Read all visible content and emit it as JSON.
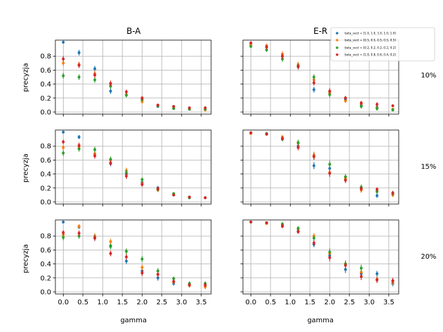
{
  "chart_data": {
    "type": "scatter",
    "column_titles": [
      "B-A",
      "E-R"
    ],
    "row_labels": [
      "10%",
      "15%",
      "20%"
    ],
    "ylabel": "precyzja",
    "xlabel": "gamma",
    "xlim": [
      -0.2,
      3.75
    ],
    "ylim": [
      -0.03,
      1.03
    ],
    "xticks": [
      0.0,
      0.5,
      1.0,
      1.5,
      2.0,
      2.5,
      3.0,
      3.5
    ],
    "xtick_labels": [
      "0.0",
      "0.5",
      "1.0",
      "1.5",
      "2.0",
      "2.5",
      "3.0",
      "3.5"
    ],
    "yticks": [
      0.0,
      0.2,
      0.4,
      0.6,
      0.8
    ],
    "ytick_labels": [
      "0.0",
      "0.2",
      "0.4",
      "0.6",
      "0.8"
    ],
    "grid": true,
    "legend_location": "upper right of top-right panel",
    "x": [
      0.0,
      0.4,
      0.8,
      1.2,
      1.6,
      2.0,
      2.4,
      2.8,
      3.2,
      3.6
    ],
    "series_colors": [
      "#1f77b4",
      "#ff7f0e",
      "#2ca02c",
      "#d62728"
    ],
    "series_names": [
      "beta_vect = [1.0, 1.0, 1.0, 1.0, 1.0]",
      "beta_vect = [0.5, 0.5, 0.5, 0.5, 0.5]",
      "beta_vect = [0.2, 0.2, 0.2, 0.2, 0.2]",
      "beta_vect = [1.0, 0.8, 0.6, 0.4, 0.2]"
    ],
    "panels": [
      {
        "row": 0,
        "col": 0,
        "series": [
          {
            "values": [
              1.0,
              0.85,
              0.62,
              0.3,
              0.25,
              0.18,
              0.08,
              0.05,
              0.04,
              0.04
            ],
            "errors": [
              0.02,
              0.04,
              0.04,
              0.04,
              0.03,
              0.03,
              0.02,
              0.02,
              0.02,
              0.02
            ]
          },
          {
            "values": [
              0.7,
              0.68,
              0.55,
              0.38,
              0.25,
              0.15,
              0.09,
              0.06,
              0.04,
              0.03
            ],
            "errors": [
              0.04,
              0.04,
              0.04,
              0.04,
              0.03,
              0.03,
              0.02,
              0.02,
              0.02,
              0.02
            ]
          },
          {
            "values": [
              0.52,
              0.5,
              0.46,
              0.37,
              0.24,
              0.18,
              0.09,
              0.05,
              0.04,
              0.04
            ],
            "errors": [
              0.04,
              0.04,
              0.04,
              0.04,
              0.03,
              0.03,
              0.02,
              0.02,
              0.02,
              0.02
            ]
          },
          {
            "values": [
              0.76,
              0.67,
              0.53,
              0.41,
              0.29,
              0.2,
              0.1,
              0.08,
              0.06,
              0.06
            ],
            "errors": [
              0.04,
              0.04,
              0.04,
              0.04,
              0.03,
              0.03,
              0.02,
              0.02,
              0.02,
              0.02
            ]
          }
        ]
      },
      {
        "row": 0,
        "col": 1,
        "series": [
          {
            "values": [
              0.98,
              0.94,
              0.8,
              0.65,
              0.32,
              0.28,
              0.18,
              0.1,
              0.07,
              0.04
            ],
            "errors": [
              0.02,
              0.03,
              0.04,
              0.04,
              0.04,
              0.04,
              0.03,
              0.03,
              0.03,
              0.02
            ]
          },
          {
            "values": [
              0.96,
              0.95,
              0.83,
              0.68,
              0.46,
              0.27,
              0.16,
              0.12,
              0.06,
              0.04
            ],
            "errors": [
              0.02,
              0.03,
              0.04,
              0.04,
              0.04,
              0.04,
              0.03,
              0.03,
              0.03,
              0.02
            ]
          },
          {
            "values": [
              0.94,
              0.89,
              0.76,
              0.66,
              0.5,
              0.25,
              0.2,
              0.08,
              0.05,
              0.03
            ],
            "errors": [
              0.02,
              0.03,
              0.04,
              0.04,
              0.04,
              0.04,
              0.03,
              0.03,
              0.03,
              0.02
            ]
          },
          {
            "values": [
              0.99,
              0.93,
              0.8,
              0.65,
              0.42,
              0.3,
              0.2,
              0.13,
              0.11,
              0.09
            ],
            "errors": [
              0.02,
              0.03,
              0.04,
              0.04,
              0.04,
              0.04,
              0.03,
              0.03,
              0.03,
              0.02
            ]
          }
        ]
      },
      {
        "row": 1,
        "col": 0,
        "series": [
          {
            "values": [
              1.0,
              0.93,
              0.69,
              0.55,
              0.4,
              0.28,
              0.2,
              0.1,
              0.06,
              0.06
            ],
            "errors": [
              0.02,
              0.03,
              0.04,
              0.04,
              0.04,
              0.03,
              0.03,
              0.02,
              0.02,
              0.02
            ]
          },
          {
            "values": [
              0.78,
              0.79,
              0.69,
              0.6,
              0.45,
              0.26,
              0.17,
              0.11,
              0.07,
              0.06
            ],
            "errors": [
              0.04,
              0.04,
              0.04,
              0.04,
              0.04,
              0.03,
              0.03,
              0.02,
              0.02,
              0.02
            ]
          },
          {
            "values": [
              0.7,
              0.76,
              0.75,
              0.61,
              0.42,
              0.32,
              0.18,
              0.12,
              0.06,
              0.06
            ],
            "errors": [
              0.04,
              0.04,
              0.04,
              0.04,
              0.04,
              0.03,
              0.03,
              0.02,
              0.02,
              0.02
            ]
          },
          {
            "values": [
              0.86,
              0.81,
              0.66,
              0.56,
              0.37,
              0.25,
              0.19,
              0.1,
              0.07,
              0.06
            ],
            "errors": [
              0.03,
              0.04,
              0.04,
              0.04,
              0.04,
              0.03,
              0.03,
              0.02,
              0.02,
              0.02
            ]
          }
        ]
      },
      {
        "row": 1,
        "col": 1,
        "series": [
          {
            "values": [
              0.99,
              0.97,
              0.9,
              0.8,
              0.52,
              0.48,
              0.33,
              0.19,
              0.09,
              0.11
            ],
            "errors": [
              0.02,
              0.02,
              0.03,
              0.04,
              0.05,
              0.05,
              0.04,
              0.04,
              0.03,
              0.03
            ]
          },
          {
            "values": [
              0.98,
              0.97,
              0.93,
              0.84,
              0.67,
              0.42,
              0.33,
              0.17,
              0.15,
              0.1
            ],
            "errors": [
              0.02,
              0.02,
              0.03,
              0.04,
              0.05,
              0.05,
              0.04,
              0.04,
              0.03,
              0.03
            ]
          },
          {
            "values": [
              0.99,
              0.98,
              0.9,
              0.85,
              0.65,
              0.54,
              0.36,
              0.21,
              0.15,
              0.12
            ],
            "errors": [
              0.02,
              0.02,
              0.03,
              0.04,
              0.05,
              0.05,
              0.04,
              0.04,
              0.03,
              0.03
            ]
          },
          {
            "values": [
              0.99,
              0.97,
              0.91,
              0.78,
              0.65,
              0.41,
              0.31,
              0.19,
              0.18,
              0.13
            ],
            "errors": [
              0.02,
              0.02,
              0.03,
              0.04,
              0.05,
              0.05,
              0.04,
              0.04,
              0.03,
              0.03
            ]
          }
        ]
      },
      {
        "row": 2,
        "col": 0,
        "series": [
          {
            "values": [
              1.0,
              0.93,
              0.77,
              0.66,
              0.44,
              0.3,
              0.2,
              0.12,
              0.1,
              0.08
            ],
            "errors": [
              0.02,
              0.03,
              0.04,
              0.04,
              0.04,
              0.04,
              0.04,
              0.03,
              0.03,
              0.03
            ]
          },
          {
            "values": [
              0.82,
              0.94,
              0.8,
              0.72,
              0.58,
              0.35,
              0.25,
              0.14,
              0.09,
              0.07
            ],
            "errors": [
              0.04,
              0.03,
              0.04,
              0.04,
              0.04,
              0.04,
              0.04,
              0.03,
              0.03,
              0.03
            ]
          },
          {
            "values": [
              0.78,
              0.8,
              0.78,
              0.65,
              0.58,
              0.47,
              0.3,
              0.19,
              0.12,
              0.12
            ],
            "errors": [
              0.04,
              0.04,
              0.04,
              0.04,
              0.04,
              0.04,
              0.04,
              0.03,
              0.03,
              0.03
            ]
          },
          {
            "values": [
              0.85,
              0.84,
              0.77,
              0.55,
              0.5,
              0.27,
              0.25,
              0.15,
              0.1,
              0.1
            ],
            "errors": [
              0.03,
              0.04,
              0.04,
              0.04,
              0.04,
              0.04,
              0.04,
              0.03,
              0.03,
              0.03
            ]
          }
        ]
      },
      {
        "row": 2,
        "col": 1,
        "series": [
          {
            "values": [
              1.0,
              0.98,
              0.96,
              0.87,
              0.68,
              0.52,
              0.32,
              0.26,
              0.26,
              0.12
            ],
            "errors": [
              0.01,
              0.02,
              0.03,
              0.03,
              0.04,
              0.05,
              0.05,
              0.05,
              0.04,
              0.04
            ]
          },
          {
            "values": [
              1.0,
              0.98,
              0.95,
              0.9,
              0.8,
              0.55,
              0.4,
              0.28,
              0.18,
              0.14
            ],
            "errors": [
              0.01,
              0.02,
              0.03,
              0.03,
              0.04,
              0.05,
              0.05,
              0.05,
              0.04,
              0.04
            ]
          },
          {
            "values": [
              1.0,
              0.99,
              0.97,
              0.91,
              0.77,
              0.57,
              0.4,
              0.34,
              0.17,
              0.16
            ],
            "errors": [
              0.01,
              0.02,
              0.03,
              0.03,
              0.04,
              0.05,
              0.05,
              0.05,
              0.04,
              0.04
            ]
          },
          {
            "values": [
              1.0,
              0.99,
              0.94,
              0.86,
              0.7,
              0.49,
              0.38,
              0.22,
              0.17,
              0.16
            ],
            "errors": [
              0.01,
              0.02,
              0.03,
              0.03,
              0.04,
              0.05,
              0.05,
              0.05,
              0.04,
              0.04
            ]
          }
        ]
      }
    ]
  }
}
